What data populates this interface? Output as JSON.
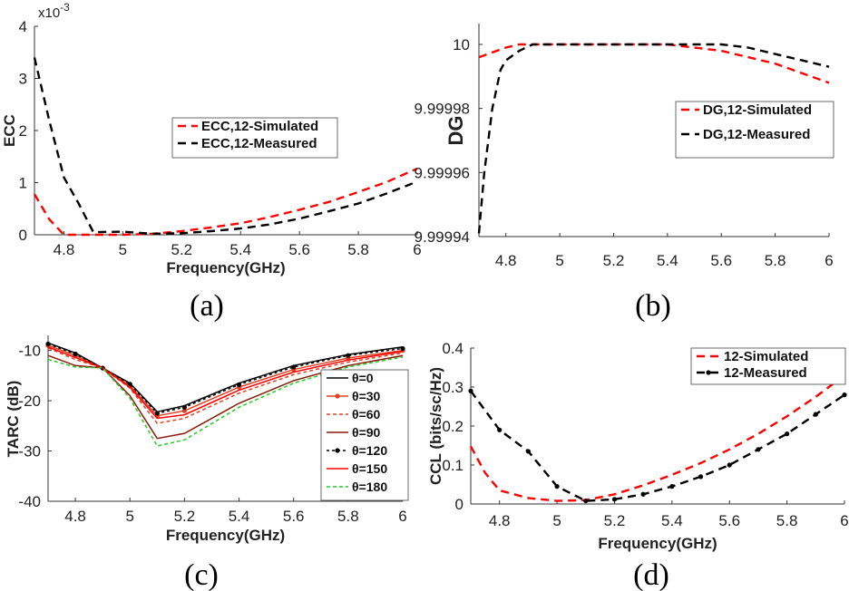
{
  "chart_data": [
    {
      "id": "a",
      "type": "line",
      "panel_label": "(a)",
      "xlabel": "Frequency(GHz)",
      "ylabel": "ECC",
      "exponent_label": "x10",
      "exponent_power": "-3",
      "xlim": [
        4.7,
        6.0
      ],
      "ylim": [
        0,
        4
      ],
      "xticks": [
        4.8,
        5,
        5.2,
        5.4,
        5.6,
        5.8,
        6
      ],
      "xtick_labels": [
        "4.8",
        "5",
        "5.2",
        "5.4",
        "5.6",
        "5.8",
        "6"
      ],
      "yticks": [
        0,
        1,
        2,
        3,
        4
      ],
      "ytick_labels": [
        "0",
        "1",
        "2",
        "3",
        "4"
      ],
      "series": [
        {
          "name": "ECC,12-Simulated",
          "color": "#ff0000",
          "dash": "9,6",
          "marker": "none",
          "x": [
            4.7,
            4.75,
            4.8,
            4.9,
            5.0,
            5.1,
            5.2,
            5.3,
            5.4,
            5.5,
            5.6,
            5.7,
            5.8,
            5.9,
            6.0
          ],
          "y": [
            0.78,
            0.3,
            0.0,
            0.0,
            0.0,
            0.02,
            0.07,
            0.14,
            0.22,
            0.34,
            0.48,
            0.63,
            0.82,
            1.02,
            1.27
          ]
        },
        {
          "name": "ECC,12-Measured",
          "color": "#000000",
          "dash": "9,6",
          "marker": "none",
          "x": [
            4.7,
            4.75,
            4.8,
            4.85,
            4.9,
            5.0,
            5.1,
            5.2,
            5.3,
            5.4,
            5.5,
            5.6,
            5.7,
            5.8,
            5.9,
            6.0
          ],
          "y": [
            3.4,
            2.2,
            1.1,
            0.6,
            0.05,
            0.06,
            0.02,
            0.03,
            0.07,
            0.12,
            0.2,
            0.31,
            0.45,
            0.6,
            0.8,
            1.02
          ]
        }
      ]
    },
    {
      "id": "b",
      "type": "line",
      "panel_label": "(b)",
      "xlabel": "",
      "ylabel": "DG",
      "xlim": [
        4.7,
        6.0
      ],
      "ylim": [
        9.99994,
        10.0000065
      ],
      "xticks": [
        4.8,
        5,
        5.2,
        5.4,
        5.6,
        5.8,
        6
      ],
      "xtick_labels": [
        "4.8",
        "5",
        "5.2",
        "5.4",
        "5.6",
        "5.8",
        "6"
      ],
      "yticks": [
        9.99994,
        9.99996,
        9.99998,
        10
      ],
      "ytick_labels": [
        "9.99994",
        "9.99996",
        "9.99998",
        "10"
      ],
      "series": [
        {
          "name": "DG,12-Simulated",
          "color": "#ff0000",
          "dash": "9,6",
          "marker": "none",
          "x": [
            4.7,
            4.8,
            4.85,
            4.9,
            5.0,
            5.2,
            5.4,
            5.5,
            5.6,
            5.7,
            5.8,
            5.9,
            6.0
          ],
          "y": [
            9.999996,
            9.999999,
            10.0,
            10.0,
            10.0,
            10.0,
            10.0,
            9.999999,
            9.999998,
            9.999996,
            9.999994,
            9.999991,
            9.999988
          ]
        },
        {
          "name": "DG,12-Measured",
          "color": "#000000",
          "dash": "9,6",
          "marker": "none",
          "x": [
            4.7,
            4.72,
            4.75,
            4.78,
            4.8,
            4.85,
            4.9,
            5.0,
            5.2,
            5.4,
            5.5,
            5.6,
            5.7,
            5.8,
            5.9,
            6.0
          ],
          "y": [
            9.999941,
            9.99996,
            9.99998,
            9.999992,
            9.999995,
            9.999998,
            10.0,
            10.0,
            10.0,
            10.0,
            10.0,
            10.0,
            9.999999,
            9.999997,
            9.999995,
            9.999993
          ]
        }
      ]
    },
    {
      "id": "c",
      "type": "line",
      "panel_label": "(c)",
      "xlabel": "Frequency(GHz)",
      "ylabel": "TARC (dB)",
      "xlim": [
        4.7,
        6.0
      ],
      "ylim": [
        -40,
        -7
      ],
      "xticks": [
        4.8,
        5,
        5.2,
        5.4,
        5.6,
        5.8,
        6
      ],
      "xtick_labels": [
        "4.8",
        "5",
        "5.2",
        "5.4",
        "5.6",
        "5.8",
        "6"
      ],
      "yticks": [
        -40,
        -30,
        -20,
        -10
      ],
      "ytick_labels": [
        "-40",
        "-30",
        "-20",
        "-10"
      ],
      "series": [
        {
          "name": "θ=0",
          "color": "#000000",
          "dash": "",
          "marker": "none",
          "x": [
            4.7,
            4.8,
            4.9,
            5.0,
            5.1,
            5.2,
            5.4,
            5.6,
            5.8,
            6.0
          ],
          "y": [
            -8.5,
            -10.5,
            -13.5,
            -16.5,
            -22.2,
            -21.0,
            -16.5,
            -13.0,
            -10.8,
            -9.3
          ]
        },
        {
          "name": "θ=30",
          "color": "#e04020",
          "dash": "",
          "marker": "dot",
          "x": [
            4.7,
            4.8,
            4.9,
            5.0,
            5.1,
            5.2,
            5.4,
            5.6,
            5.8,
            6.0
          ],
          "y": [
            -9.0,
            -11.0,
            -13.5,
            -17.0,
            -23.0,
            -22.0,
            -17.3,
            -13.8,
            -11.5,
            -10.0
          ]
        },
        {
          "name": "θ=60",
          "color": "#e04020",
          "dash": "4,3",
          "marker": "none",
          "x": [
            4.7,
            4.8,
            4.9,
            5.0,
            5.1,
            5.2,
            5.4,
            5.6,
            5.8,
            6.0
          ],
          "y": [
            -9.5,
            -11.8,
            -13.5,
            -17.5,
            -24.5,
            -23.5,
            -18.5,
            -14.8,
            -12.3,
            -10.5
          ]
        },
        {
          "name": "θ=90",
          "color": "#8b1a0a",
          "dash": "",
          "marker": "none",
          "x": [
            4.7,
            4.8,
            4.9,
            5.0,
            5.1,
            5.2,
            5.4,
            5.6,
            5.8,
            6.0
          ],
          "y": [
            -11.0,
            -13.0,
            -13.5,
            -19.0,
            -27.5,
            -26.5,
            -20.5,
            -16.0,
            -13.0,
            -11.0
          ]
        },
        {
          "name": "θ=120",
          "color": "#000000",
          "dash": "3,3",
          "marker": "dot",
          "x": [
            4.7,
            4.8,
            4.9,
            5.0,
            5.1,
            5.2,
            5.4,
            5.6,
            5.8,
            6.0
          ],
          "y": [
            -8.7,
            -10.7,
            -13.5,
            -16.7,
            -22.5,
            -21.3,
            -16.8,
            -13.3,
            -11.0,
            -9.6
          ]
        },
        {
          "name": "θ=150",
          "color": "#ff0000",
          "dash": "",
          "marker": "none",
          "x": [
            4.7,
            4.8,
            4.9,
            5.0,
            5.1,
            5.2,
            5.4,
            5.6,
            5.8,
            6.0
          ],
          "y": [
            -9.3,
            -11.4,
            -13.5,
            -17.3,
            -23.5,
            -22.8,
            -17.9,
            -14.3,
            -11.9,
            -10.2
          ]
        },
        {
          "name": "θ=180",
          "color": "#22cc22",
          "dash": "4,3",
          "marker": "none",
          "x": [
            4.7,
            4.8,
            4.9,
            5.0,
            5.1,
            5.2,
            5.4,
            5.6,
            5.8,
            6.0
          ],
          "y": [
            -11.8,
            -13.3,
            -13.5,
            -19.5,
            -29.0,
            -27.8,
            -21.3,
            -16.5,
            -13.3,
            -11.3
          ]
        }
      ]
    },
    {
      "id": "d",
      "type": "line",
      "panel_label": "(d)",
      "xlabel": "Frequency(GHz)",
      "ylabel": "CCL (bits/sc/Hz)",
      "xlim": [
        4.7,
        6.0
      ],
      "ylim": [
        0,
        0.4
      ],
      "xticks": [
        4.8,
        5,
        5.2,
        5.4,
        5.6,
        5.8,
        6
      ],
      "xtick_labels": [
        "4.8",
        "5",
        "5.2",
        "5.4",
        "5.6",
        "5.8",
        "6"
      ],
      "yticks": [
        0,
        0.1,
        0.2,
        0.3,
        0.4
      ],
      "ytick_labels": [
        "0",
        "0.1",
        "0.2",
        "0.3",
        "0.4"
      ],
      "series": [
        {
          "name": "12-Simulated",
          "color": "#ff0000",
          "dash": "9,6",
          "marker": "none",
          "x": [
            4.7,
            4.75,
            4.8,
            4.9,
            5.0,
            5.1,
            5.2,
            5.3,
            5.4,
            5.5,
            5.6,
            5.7,
            5.8,
            5.9,
            6.0
          ],
          "y": [
            0.148,
            0.08,
            0.035,
            0.015,
            0.008,
            0.01,
            0.025,
            0.048,
            0.075,
            0.105,
            0.14,
            0.18,
            0.225,
            0.275,
            0.33
          ]
        },
        {
          "name": "12-Measured",
          "color": "#000000",
          "dash": "9,6",
          "marker": "dot",
          "x": [
            4.7,
            4.8,
            4.9,
            5.0,
            5.1,
            5.2,
            5.3,
            5.4,
            5.5,
            5.6,
            5.7,
            5.8,
            5.9,
            6.0
          ],
          "y": [
            0.29,
            0.19,
            0.135,
            0.045,
            0.008,
            0.012,
            0.025,
            0.045,
            0.07,
            0.1,
            0.14,
            0.18,
            0.23,
            0.28
          ]
        }
      ]
    }
  ]
}
